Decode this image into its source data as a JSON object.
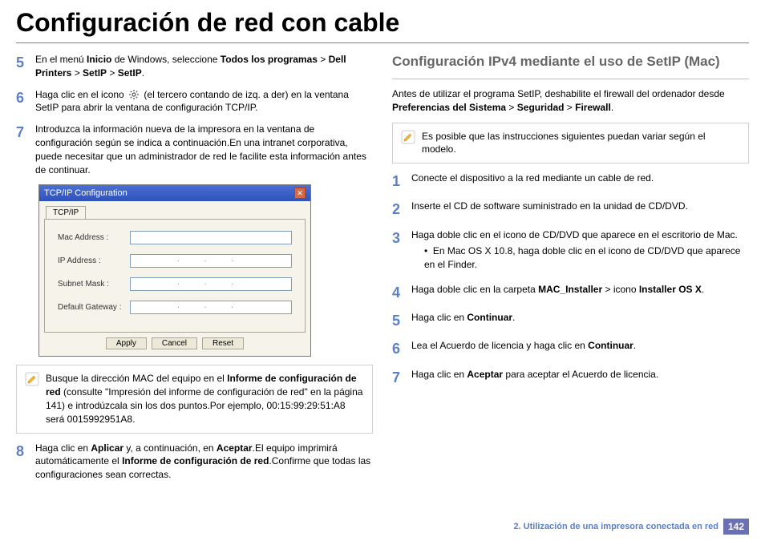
{
  "title": "Configuración de red con cable",
  "left": {
    "steps": [
      {
        "n": "5",
        "html": "En el menú <b>Inicio</b> de Windows, seleccione <b>Todos los programas</b> > <b>Dell Printers</b> > <b>SetIP</b> > <b>SetIP</b>."
      },
      {
        "n": "6",
        "html": "Haga clic en el icono {gear} (el tercero contando de izq. a der) en la ventana SetIP para abrir la ventana de configuración TCP/IP."
      },
      {
        "n": "7",
        "html": "Introduzca la información nueva de la impresora en la ventana de configuración según se indica a continuación.En una intranet corporativa, puede necesitar que un administrador de red le facilite esta información antes de continuar."
      }
    ],
    "dialog": {
      "title": "TCP/IP Configuration",
      "tab": "TCP/IP",
      "fields": [
        {
          "label": "Mac Address :",
          "placeholder": ""
        },
        {
          "label": "IP Address :",
          "placeholder": ".   .   ."
        },
        {
          "label": "Subnet Mask :",
          "placeholder": ".   .   ."
        },
        {
          "label": "Default Gateway :",
          "placeholder": ".   .   ."
        }
      ],
      "buttons": [
        "Apply",
        "Cancel",
        "Reset"
      ]
    },
    "note": "Busque la dirección MAC del equipo en el <b>Informe de configuración de red</b> (consulte \"Impresión del informe de configuración de red\" en la página 141) e introdúzcala sin los dos puntos.Por ejemplo, 00:15:99:29:51:A8 será 0015992951A8.",
    "step8": {
      "n": "8",
      "html": "Haga clic en <b>Aplicar</b> y, a continuación, en <b>Aceptar</b>.El equipo imprimirá automáticamente el <b>Informe de configuración de red</b>.Confirme que todas las configuraciones sean correctas."
    }
  },
  "right": {
    "section_title": "Configuración IPv4 mediante el uso de SetIP (Mac)",
    "intro": "Antes de utilizar el programa SetIP, deshabilite el firewall del ordenador desde <b>Preferencias del Sistema</b> > <b>Seguridad</b> > <b>Firewall</b>.",
    "note": "Es posible que las instrucciones siguientes puedan variar según el modelo.",
    "steps": [
      {
        "n": "1",
        "html": "Conecte el dispositivo a la red mediante un cable de red."
      },
      {
        "n": "2",
        "html": "Inserte el CD de software suministrado en la unidad de CD/DVD."
      },
      {
        "n": "3",
        "html": "Haga doble clic en el icono de CD/DVD que aparece en el escritorio de Mac.",
        "sub": "En Mac OS X 10.8, haga doble clic en el icono de CD/DVD que aparece en el Finder."
      },
      {
        "n": "4",
        "html": "Haga doble clic en la carpeta <b>MAC_Installer</b> > icono <b>Installer OS X</b>."
      },
      {
        "n": "5",
        "html": "Haga clic en <b>Continuar</b>."
      },
      {
        "n": "6",
        "html": "Lea el Acuerdo de licencia y haga clic en <b>Continuar</b>."
      },
      {
        "n": "7",
        "html": "Haga clic en <b>Aceptar</b> para aceptar el Acuerdo de licencia."
      }
    ]
  },
  "footer": {
    "chapter": "2.  Utilización de una impresora conectada en red",
    "page": "142"
  },
  "colors": {
    "step_num": "#5c7fc5",
    "section_title": "#666666",
    "footer": "#5c7fc5",
    "page_badge_bg": "#6b6fb3"
  }
}
